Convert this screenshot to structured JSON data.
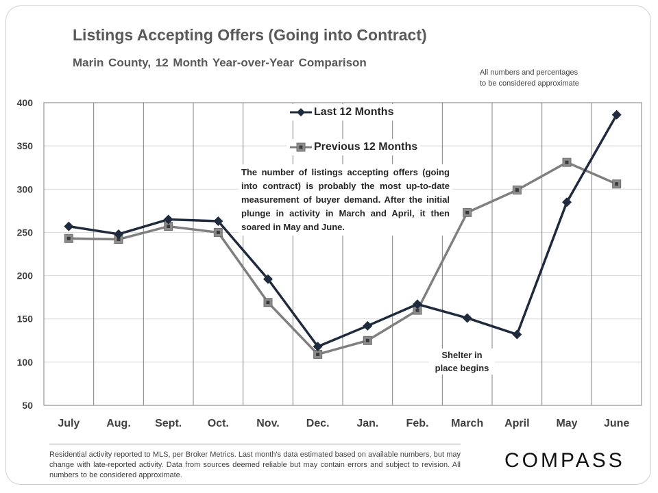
{
  "chart_data": {
    "type": "line",
    "title": "Listings Accepting Offers (Going into Contract)",
    "subtitle": "Marin County,  12 Month Year-over-Year  Comparison",
    "categories": [
      "July",
      "Aug.",
      "Sept.",
      "Oct.",
      "Nov.",
      "Dec.",
      "Jan.",
      "Feb.",
      "March",
      "April",
      "May",
      "June"
    ],
    "series": [
      {
        "name": "Last 12 Months",
        "color": "#1f2a3d",
        "marker": "diamond",
        "values": [
          257,
          248,
          265,
          263,
          196,
          118,
          142,
          167,
          151,
          132,
          285,
          386
        ]
      },
      {
        "name": "Previous 12 Months",
        "color": "#7f7f7f",
        "marker": "square",
        "values": [
          243,
          242,
          257,
          250,
          169,
          109,
          125,
          160,
          273,
          299,
          331,
          306
        ]
      }
    ],
    "ylim": [
      50,
      400
    ],
    "yticks": [
      50,
      100,
      150,
      200,
      250,
      300,
      350,
      400
    ],
    "xlabel": "",
    "ylabel": "",
    "grid": "vertical",
    "legend": "top-center"
  },
  "notes": {
    "disclaimer_line1": "All numbers and percentages",
    "disclaimer_line2": "to be considered approximate",
    "callout": "The number of listings accepting offers (going into contract) is probably the most up-to-date measurement of buyer demand. After the initial plunge in activity in March and April, it then soared in May and June.",
    "shelter_line1": "Shelter in",
    "shelter_line2": "place begins"
  },
  "footer": {
    "text": "Residential activity reported to MLS, per Broker Metrics. Last month's data estimated based on available numbers, but may change with late-reported activity. Data from sources deemed reliable but may contain errors and subject to revision. All numbers to be considered approximate."
  },
  "brand": {
    "logo": "COMPASS"
  }
}
